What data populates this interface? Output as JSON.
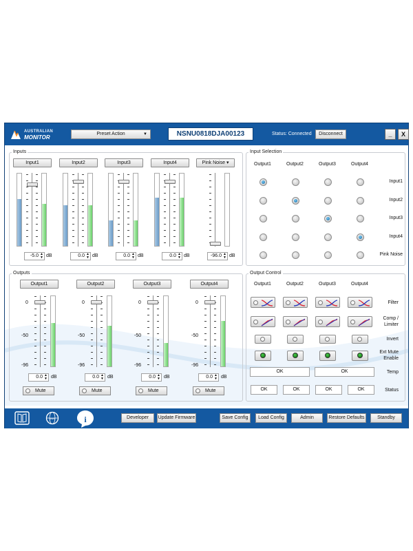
{
  "logo": {
    "line1": "AUSTRALIAN",
    "line2": "MONITOR"
  },
  "header": {
    "preset_label": "Preset Action",
    "serial": "NSNU0818DJA00123",
    "status": "Status: Connected",
    "disconnect": "Disconnect",
    "minimize": "_",
    "close": "X"
  },
  "inputs": {
    "title": "Inputs",
    "channels": [
      {
        "label": "Input1",
        "value": "-5.0",
        "unit": "dB",
        "level_blue": 0.65,
        "level_green": 0.58
      },
      {
        "label": "Input2",
        "value": "0.0",
        "unit": "dB",
        "level_blue": 0.56,
        "level_green": 0.56
      },
      {
        "label": "Input3",
        "value": "0.0",
        "unit": "dB",
        "level_blue": 0.35,
        "level_green": 0.35
      },
      {
        "label": "Input4",
        "value": "0.0",
        "unit": "dB",
        "level_blue": 0.67,
        "level_green": 0.67
      }
    ],
    "pink": {
      "label": "Pink Noise",
      "value": "-96.0",
      "unit": "dB"
    }
  },
  "input_selection": {
    "title": "Input Selection",
    "columns": [
      "Output1",
      "Output2",
      "Output3",
      "Output4"
    ],
    "rows": [
      "Input1",
      "Input2",
      "Input3",
      "Input4",
      "Pink Noise"
    ],
    "selected": [
      [
        true,
        false,
        false,
        false
      ],
      [
        false,
        true,
        false,
        false
      ],
      [
        false,
        false,
        true,
        false
      ],
      [
        false,
        false,
        false,
        true
      ],
      [
        false,
        false,
        false,
        false
      ]
    ]
  },
  "outputs": {
    "title": "Outputs",
    "channels": [
      {
        "label": "Output1",
        "value": "0.0",
        "unit": "dB",
        "level": 0.62,
        "mute": "Mute"
      },
      {
        "label": "Output2",
        "value": "0.0",
        "unit": "dB",
        "level": 0.58,
        "mute": "Mute"
      },
      {
        "label": "Output3",
        "value": "0.0",
        "unit": "dB",
        "level": 0.33,
        "mute": "Mute"
      },
      {
        "label": "Output4",
        "value": "0.0",
        "unit": "dB",
        "level": 0.65,
        "mute": "Mute"
      }
    ],
    "scale": {
      "top": "0",
      "mid": "-50",
      "bottom": "-96"
    }
  },
  "output_control": {
    "title": "Output Control",
    "columns": [
      "Output1",
      "Output2",
      "Output3",
      "Output4"
    ],
    "row_labels": {
      "filter": "Filter",
      "comp": "Comp /",
      "limiter": "Limiter",
      "invert": "Invert",
      "extmute": "Ext Mute",
      "enable": "Enable",
      "temp": "Temp",
      "status": "Status"
    },
    "temp": [
      "OK",
      "OK"
    ],
    "status": [
      "OK",
      "OK",
      "OK",
      "OK"
    ]
  },
  "footer": {
    "developer": "Developer",
    "update": "Update Firmware",
    "save": "Save Config",
    "load": "Load Config",
    "admin": "Admin",
    "restore": "Restore Defaults",
    "standby": "Standby"
  },
  "colors": {
    "titlebar": "#1459a1",
    "meter_blue": "#6a9bc8",
    "meter_green": "#68d068"
  }
}
